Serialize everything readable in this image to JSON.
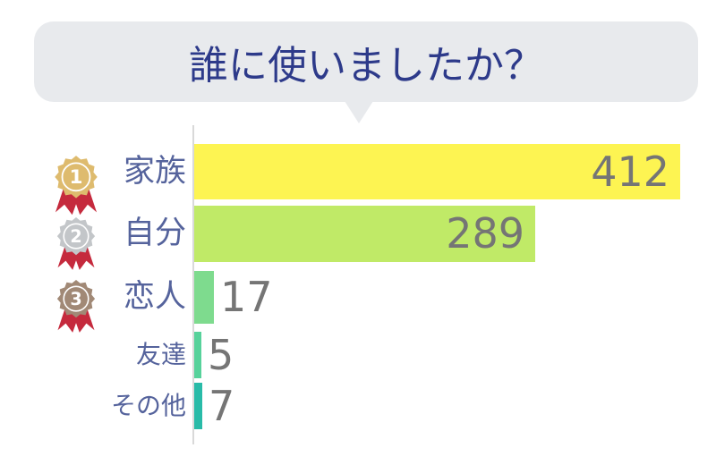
{
  "title": {
    "text": "誰に使いましたか？"
  },
  "chart_data": {
    "type": "bar",
    "orientation": "horizontal",
    "title": "誰に使いましたか？",
    "categories": [
      "家族",
      "自分",
      "恋人",
      "友達",
      "その他"
    ],
    "values": [
      412,
      289,
      17,
      5,
      7
    ],
    "bar_colors": [
      "#fdf452",
      "#c0ea67",
      "#7edb8e",
      "#57d29b",
      "#29bba8"
    ],
    "xlim": [
      0,
      412
    ],
    "grid": false,
    "legend": false,
    "value_labels": [
      "412",
      "289",
      "17",
      "5",
      "7"
    ],
    "ranks": [
      {
        "rank": "1",
        "medal_color": "#debb6e"
      },
      {
        "rank": "2",
        "medal_color": "#c3c6c9"
      },
      {
        "rank": "3",
        "medal_color": "#a18976"
      }
    ],
    "ribbon_color": "#c52a3d",
    "medal_number_color": "#ffffff"
  },
  "colors": {
    "title": "#2d3a8a",
    "bubble": "#e8eaed",
    "axis": "#d9d9d9",
    "category_label": "#55639c",
    "value_label": "#757575",
    "background": "#ffffff"
  }
}
